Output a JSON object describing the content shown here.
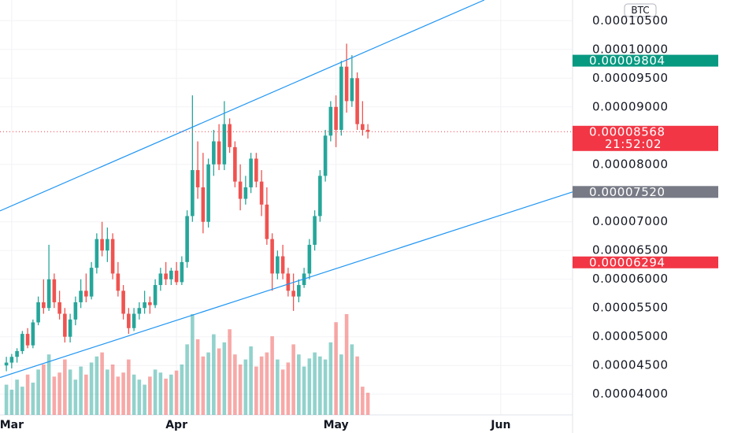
{
  "chart_data": {
    "type": "candlestick",
    "quote": "BTC",
    "xlim": [
      -1.2,
      106.5
    ],
    "xticks": [
      {
        "value": 1,
        "label": "Mar"
      },
      {
        "value": 32,
        "label": "Apr"
      },
      {
        "value": 62,
        "label": "May"
      },
      {
        "value": 93,
        "label": "Jun"
      }
    ],
    "ylim": [
      3.64e-05,
      0.0001086
    ],
    "yticks": [
      {
        "value": 4e-05,
        "label": "0.00004000"
      },
      {
        "value": 4.5e-05,
        "label": "0.00004500"
      },
      {
        "value": 5e-05,
        "label": "0.00005000"
      },
      {
        "value": 5.5e-05,
        "label": "0.00005500"
      },
      {
        "value": 6e-05,
        "label": "0.00006000"
      },
      {
        "value": 6.5e-05,
        "label": "0.00006500"
      },
      {
        "value": 7e-05,
        "label": "0.00007000"
      },
      {
        "value": 8e-05,
        "label": "0.00008000"
      },
      {
        "value": 9e-05,
        "label": "0.00009000"
      },
      {
        "value": 9.5e-05,
        "label": "0.00009500"
      },
      {
        "value": 0.0001,
        "label": "0.00010000"
      },
      {
        "value": 0.000105,
        "label": "0.00010500"
      }
    ],
    "grid": true,
    "up_color": "#26a69a",
    "down_color": "#ef5350",
    "open": [
      4.5e-05,
      4.55e-05,
      4.65e-05,
      4.75e-05,
      5.05e-05,
      4.85e-05,
      5.25e-05,
      5.6e-05,
      5.5e-05,
      6e-05,
      5.6e-05,
      5.4e-05,
      5e-05,
      5.3e-05,
      5.6e-05,
      5.8e-05,
      5.7e-05,
      6.2e-05,
      6.7e-05,
      6.5e-05,
      6.7e-05,
      6.1e-05,
      5.8e-05,
      5.4e-05,
      5.15e-05,
      5.4e-05,
      5.5e-05,
      5.6e-05,
      5.55e-05,
      5.9e-05,
      6.1e-05,
      6e-05,
      6.15e-05,
      5.95e-05,
      6.3e-05,
      7.1e-05,
      7.9e-05,
      7.6e-05,
      7e-05,
      8e-05,
      8.4e-05,
      8e-05,
      8.7e-05,
      8.3e-05,
      7.7e-05,
      7.4e-05,
      7.6e-05,
      8.1e-05,
      7.7e-05,
      7.3e-05,
      6.7e-05,
      6.1e-05,
      6.4e-05,
      6.1e-05,
      5.8e-05,
      5.7e-05,
      5.9e-05,
      6.1e-05,
      6.6e-05,
      7.1e-05,
      7.8e-05,
      8.5e-05,
      9e-05,
      8.6e-05,
      9.7e-05,
      9.1e-05,
      9.5e-05,
      8.7e-05,
      8.6e-05
    ],
    "high": [
      4.65e-05,
      4.7e-05,
      4.8e-05,
      5.1e-05,
      5.15e-05,
      5.3e-05,
      5.7e-05,
      6e-05,
      6.6e-05,
      6.1e-05,
      5.8e-05,
      5.5e-05,
      5.4e-05,
      5.7e-05,
      6e-05,
      6.1e-05,
      6.3e-05,
      6.8e-05,
      7e-05,
      6.9e-05,
      6.8e-05,
      6.3e-05,
      5.9e-05,
      5.5e-05,
      5.5e-05,
      5.6e-05,
      5.8e-05,
      5.7e-05,
      6e-05,
      6.2e-05,
      6.3e-05,
      6.2e-05,
      6.3e-05,
      6.4e-05,
      7.2e-05,
      9.2e-05,
      8.4e-05,
      8.2e-05,
      8.1e-05,
      8.6e-05,
      8.7e-05,
      9.1e-05,
      8.8e-05,
      8.4e-05,
      8e-05,
      7.8e-05,
      8.2e-05,
      8.2e-05,
      7.9e-05,
      7.6e-05,
      6.8e-05,
      6.5e-05,
      6.6e-05,
      6.2e-05,
      6.1e-05,
      6e-05,
      6.2e-05,
      6.7e-05,
      7.2e-05,
      7.9e-05,
      8.6e-05,
      9.1e-05,
      9.2e-05,
      9.8e-05,
      0.000101,
      9.9e-05,
      9.6e-05,
      9.1e-05,
      8.7e-05
    ],
    "low": [
      4.4e-05,
      4.45e-05,
      4.55e-05,
      4.7e-05,
      4.8e-05,
      4.8e-05,
      5.2e-05,
      5.4e-05,
      5.45e-05,
      5.5e-05,
      5.3e-05,
      4.9e-05,
      4.9e-05,
      5.2e-05,
      5.5e-05,
      5.6e-05,
      5.65e-05,
      6.1e-05,
      6.4e-05,
      6.3e-05,
      6e-05,
      5.7e-05,
      5.3e-05,
      5.05e-05,
      5.1e-05,
      5.3e-05,
      5.4e-05,
      5.4e-05,
      5.5e-05,
      5.8e-05,
      5.9e-05,
      5.9e-05,
      5.9e-05,
      5.9e-05,
      6.2e-05,
      7e-05,
      7.4e-05,
      6.8e-05,
      6.9e-05,
      7.8e-05,
      7.9e-05,
      7.9e-05,
      8.2e-05,
      7.6e-05,
      7.2e-05,
      7.3e-05,
      7.5e-05,
      7.6e-05,
      7.1e-05,
      6.6e-05,
      5.8e-05,
      6e-05,
      6e-05,
      5.7e-05,
      5.45e-05,
      5.6e-05,
      5.85e-05,
      6e-05,
      6.5e-05,
      7e-05,
      7.7e-05,
      8.4e-05,
      8.3e-05,
      8.5e-05,
      8.9e-05,
      9e-05,
      8.6e-05,
      8.5e-05,
      8.45e-05
    ],
    "close": [
      4.55e-05,
      4.65e-05,
      4.75e-05,
      5.05e-05,
      4.85e-05,
      5.25e-05,
      5.6e-05,
      5.5e-05,
      6e-05,
      5.6e-05,
      5.4e-05,
      5e-05,
      5.3e-05,
      5.6e-05,
      5.8e-05,
      5.7e-05,
      6.2e-05,
      6.7e-05,
      6.5e-05,
      6.7e-05,
      6.1e-05,
      5.8e-05,
      5.4e-05,
      5.15e-05,
      5.4e-05,
      5.5e-05,
      5.6e-05,
      5.55e-05,
      5.9e-05,
      6.1e-05,
      6e-05,
      6.15e-05,
      5.95e-05,
      6.3e-05,
      7.1e-05,
      7.9e-05,
      7.6e-05,
      7e-05,
      8e-05,
      8.4e-05,
      8e-05,
      8.7e-05,
      8.3e-05,
      7.7e-05,
      7.4e-05,
      7.6e-05,
      8.1e-05,
      7.7e-05,
      7.3e-05,
      6.7e-05,
      6.1e-05,
      6.4e-05,
      6.1e-05,
      5.8e-05,
      5.7e-05,
      5.9e-05,
      6.1e-05,
      6.6e-05,
      7.1e-05,
      7.8e-05,
      8.5e-05,
      9e-05,
      8.6e-05,
      9.7e-05,
      9.1e-05,
      9.5e-05,
      8.7e-05,
      8.6e-05,
      8.568e-05
    ],
    "volume": [
      30,
      25,
      35,
      28,
      40,
      32,
      45,
      50,
      60,
      38,
      42,
      55,
      45,
      35,
      48,
      40,
      52,
      58,
      62,
      45,
      50,
      38,
      42,
      55,
      40,
      35,
      30,
      38,
      45,
      42,
      36,
      40,
      44,
      50,
      70,
      100,
      75,
      58,
      62,
      80,
      66,
      72,
      85,
      60,
      50,
      55,
      68,
      48,
      58,
      62,
      78,
      55,
      45,
      52,
      70,
      60,
      48,
      56,
      62,
      58,
      55,
      72,
      92,
      60,
      100,
      70,
      58,
      28,
      22
    ],
    "trendlines": [
      {
        "color": "#2196f3",
        "points": [
          [
            -1.2,
            7.19e-05
          ],
          [
            89.9,
            0.0001086
          ]
        ]
      },
      {
        "color": "#2196f3",
        "points": [
          [
            -1.2,
            4.29e-05
          ],
          [
            106.5,
            7.52e-05
          ]
        ]
      }
    ],
    "price_labels": [
      {
        "value": 9.804e-05,
        "label": "0.00009804",
        "color": "#089981"
      },
      {
        "value": 8.568e-05,
        "label": "0.00008568",
        "color": "#f23645",
        "countdown": "21:52:02",
        "dotted": true
      },
      {
        "value": 7.52e-05,
        "label": "0.00007520",
        "color": "#787b86"
      },
      {
        "value": 6.294e-05,
        "label": "0.00006294",
        "color": "#f23645"
      }
    ]
  }
}
